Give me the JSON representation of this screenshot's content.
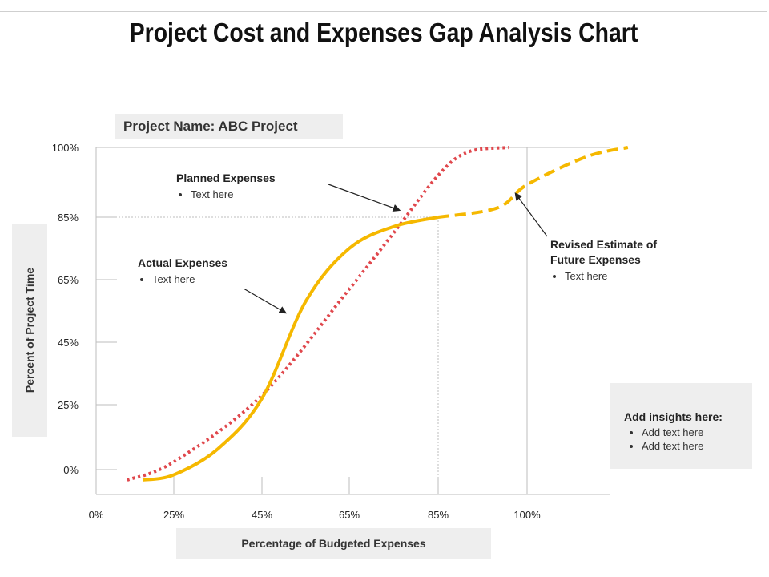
{
  "title": "Project Cost and Expenses Gap Analysis Chart",
  "project_name": "Project Name: ABC Project",
  "annotations": {
    "planned": {
      "heading": "Planned Expenses",
      "bullet": "Text here"
    },
    "actual": {
      "heading": "Actual Expenses",
      "bullet": "Text here"
    },
    "revised": {
      "heading_line1": "Revised Estimate of",
      "heading_line2": "Future Expenses",
      "bullet": "Text here"
    }
  },
  "insights": {
    "heading": "Add insights here:",
    "bullets": [
      "Add text here",
      "Add text here"
    ]
  },
  "colors": {
    "planned": "#e0474c",
    "actual": "#f5b800",
    "gridline": "#bdbdbd"
  },
  "chart_data": {
    "type": "line",
    "xlabel": "Percentage of Budgeted Expenses",
    "ylabel": "Percent of Project Time",
    "x_ticks": [
      "0%",
      "25%",
      "45%",
      "65%",
      "85%",
      "100%"
    ],
    "y_ticks": [
      "0%",
      "25%",
      "45%",
      "65%",
      "85%",
      "100%"
    ],
    "series": [
      {
        "name": "Planned Expenses",
        "style": "dotted",
        "points": [
          [
            10,
            -4
          ],
          [
            25,
            3
          ],
          [
            45,
            28
          ],
          [
            65,
            62
          ],
          [
            75,
            80
          ],
          [
            85,
            94
          ],
          [
            90,
            99
          ],
          [
            97,
            100
          ]
        ]
      },
      {
        "name": "Actual Expenses",
        "style": "solid",
        "points": [
          [
            15,
            -4
          ],
          [
            25,
            -2
          ],
          [
            35,
            8
          ],
          [
            45,
            27
          ],
          [
            55,
            58
          ],
          [
            65,
            75
          ],
          [
            75,
            82
          ],
          [
            85,
            85
          ]
        ]
      },
      {
        "name": "Revised Estimate of Future Expenses",
        "style": "dashed",
        "points": [
          [
            85,
            85
          ],
          [
            95,
            87
          ],
          [
            100,
            92
          ],
          [
            110,
            98
          ],
          [
            117,
            100
          ]
        ]
      }
    ],
    "reference_lines": [
      {
        "axis": "y",
        "value": 85,
        "style": "dotted"
      },
      {
        "axis": "x",
        "value": 85,
        "style": "dotted"
      },
      {
        "axis": "x",
        "value": 100,
        "style": "solid"
      }
    ]
  }
}
